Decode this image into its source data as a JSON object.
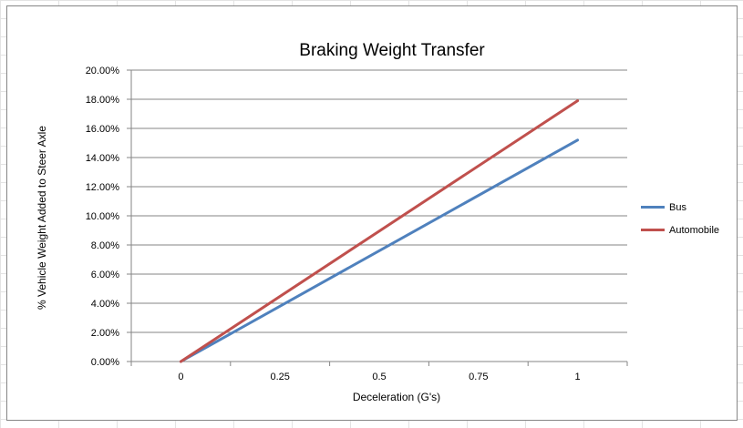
{
  "chart_data": {
    "type": "line",
    "title": "Braking Weight Transfer",
    "xlabel": "Deceleration (G's)",
    "ylabel": "% Vehicle Weight Added to Steer Axle",
    "categories": [
      "0",
      "0.25",
      "0.5",
      "0.75",
      "1"
    ],
    "x": [
      0,
      1
    ],
    "series": [
      {
        "name": "Bus",
        "values": [
          0.0,
          15.2
        ],
        "color": "#4f81bd"
      },
      {
        "name": "Automobile",
        "values": [
          0.0,
          17.9
        ],
        "color": "#c0504d"
      }
    ],
    "ylim": [
      0,
      20
    ],
    "yticks": [
      "0.00%",
      "2.00%",
      "4.00%",
      "6.00%",
      "8.00%",
      "10.00%",
      "12.00%",
      "14.00%",
      "16.00%",
      "18.00%",
      "20.00%"
    ],
    "grid": true,
    "legend_position": "right"
  }
}
